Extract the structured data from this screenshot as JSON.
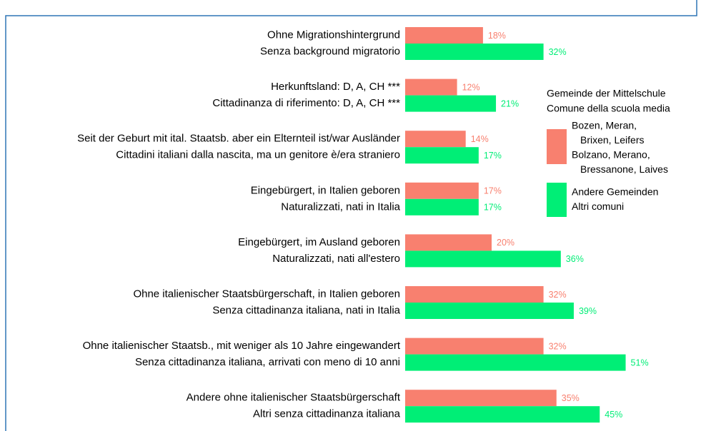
{
  "chart_data": {
    "type": "grouped-hbar",
    "categories": [
      "Ohne Migrationshintergrund",
      "Herkunftsland: D, A, CH ***",
      "Seit der Geburt mit ital. Staatsb. aber ein Elternteil ist/war Ausländer",
      "Eingebürgert, in Italien geboren",
      "Eingebürgert, im Ausland geboren",
      "Ohne italienischer Staatsbürgerschaft, in Italien geboren",
      "Ohne italienischer Staatsb., mit weniger als 10 Jahre eingewandert",
      "Andere ohne italienischer Staatsbürgerschaft"
    ],
    "categories_secondary": [
      "Senza background migratorio",
      "Cittadinanza di riferimento: D, A, CH ***",
      "Cittadini italiani dalla nascita, ma un genitore è/era straniero",
      "Naturalizzati, nati in Italia",
      "Naturalizzati, nati all'estero",
      "Senza cittadinanza italiana, nati in Italia",
      "Senza cittadinanza italiana, arrivati con meno di 10 anni",
      "Altri senza cittadinanza italiana"
    ],
    "legend_title": [
      "Gemeinde der Mittelschule",
      "Comune della scuola media"
    ],
    "series": [
      {
        "name": [
          "Bozen, Meran,",
          "Brixen, Leifers",
          "Bolzano, Merano,",
          "Bressanone, Laives"
        ],
        "color": "#f8806f",
        "values": [
          18,
          12,
          14,
          17,
          20,
          32,
          32,
          35
        ],
        "value_labels": [
          "18%",
          "12%",
          "14%",
          "17%",
          "20%",
          "32%",
          "32%",
          "35%"
        ]
      },
      {
        "name": [
          "Andere Gemeinden",
          "Altri comuni"
        ],
        "color": "#00ee76",
        "values": [
          32,
          21,
          17,
          17,
          36,
          39,
          51,
          45
        ],
        "value_labels": [
          "32%",
          "21%",
          "17%",
          "17%",
          "36%",
          "39%",
          "51%",
          "45%"
        ]
      }
    ]
  }
}
